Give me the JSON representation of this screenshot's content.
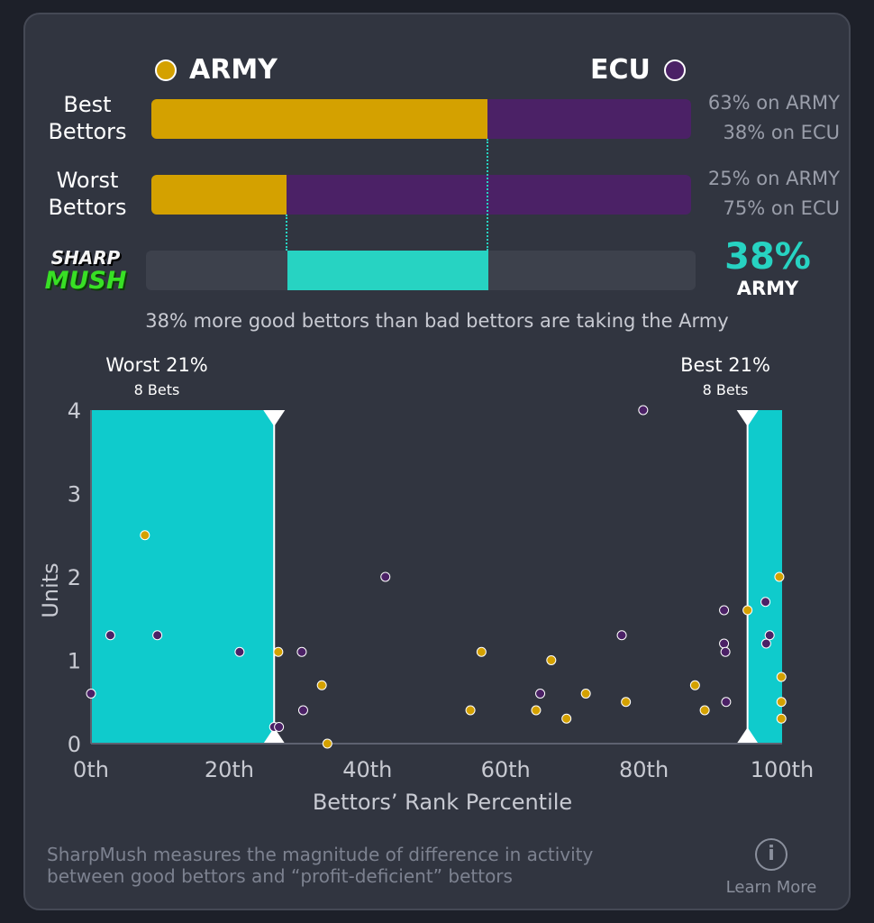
{
  "header": {
    "team_a": {
      "name": "ARMY",
      "color": "#d4a100"
    },
    "team_b": {
      "name": "ECU",
      "color": "#4b2166"
    }
  },
  "rows": [
    {
      "label_line1": "Best",
      "label_line2": "Bettors",
      "team_a_pct": 63,
      "team_b_pct": 38,
      "text_a": "63% on ARMY",
      "text_b": "38% on ECU"
    },
    {
      "label_line1": "Worst",
      "label_line2": "Bettors",
      "team_a_pct": 25,
      "team_b_pct": 75,
      "text_a": "25% on ARMY",
      "text_b": "75% on ECU"
    }
  ],
  "sharp": {
    "logo_line1": "SHARP",
    "logo_line2": "MUSH",
    "value": "38%",
    "team": "ARMY",
    "diff_fraction": 0.38,
    "color": "#27d3c2"
  },
  "summary": "38% more good bettors than bad bettors are taking the Army",
  "chart_data": {
    "type": "scatter",
    "xlabel": "Bettors’ Rank Percentile",
    "ylabel": "Units",
    "xlim": [
      0,
      100
    ],
    "ylim": [
      0,
      4
    ],
    "x_ticks": [
      "0th",
      "20th",
      "40th",
      "60th",
      "80th",
      "100th"
    ],
    "x_tick_values": [
      0,
      20,
      40,
      60,
      80,
      100
    ],
    "y_ticks": [
      "0",
      "1",
      "2",
      "3",
      "4"
    ],
    "y_tick_values": [
      0,
      1,
      2,
      3,
      4
    ],
    "regions": [
      {
        "name": "Worst 21%",
        "sub": "8 Bets",
        "x_start": 0,
        "x_end": 26.5
      },
      {
        "name": "Best 21%",
        "sub": "8 Bets",
        "x_start": 95,
        "x_end": 100
      }
    ],
    "series": [
      {
        "name": "ARMY",
        "color": "#d4a100",
        "points": [
          [
            7.8,
            2.5
          ],
          [
            27.1,
            1.1
          ],
          [
            33.4,
            0.7
          ],
          [
            34.2,
            0.0
          ],
          [
            54.9,
            0.4
          ],
          [
            56.5,
            1.1
          ],
          [
            64.4,
            0.4
          ],
          [
            66.6,
            1.0
          ],
          [
            68.8,
            0.3
          ],
          [
            71.6,
            0.6
          ],
          [
            77.4,
            0.5
          ],
          [
            87.4,
            0.7
          ],
          [
            88.8,
            0.4
          ],
          [
            95.0,
            1.6
          ],
          [
            99.6,
            2.0
          ],
          [
            99.9,
            0.8
          ],
          [
            99.9,
            0.5
          ],
          [
            99.9,
            0.3
          ]
        ]
      },
      {
        "name": "ECU",
        "color": "#4b2166",
        "points": [
          [
            0.0,
            0.6
          ],
          [
            2.8,
            1.3
          ],
          [
            9.6,
            1.3
          ],
          [
            21.5,
            1.1
          ],
          [
            26.5,
            0.2
          ],
          [
            27.2,
            0.2
          ],
          [
            30.5,
            1.1
          ],
          [
            30.7,
            0.4
          ],
          [
            42.6,
            2.0
          ],
          [
            65.0,
            0.6
          ],
          [
            76.8,
            1.3
          ],
          [
            79.9,
            4.0
          ],
          [
            91.6,
            1.6
          ],
          [
            91.6,
            1.2
          ],
          [
            91.8,
            1.1
          ],
          [
            91.9,
            0.5
          ],
          [
            97.6,
            1.7
          ],
          [
            97.7,
            1.2
          ],
          [
            98.2,
            1.3
          ]
        ]
      }
    ]
  },
  "footer": {
    "text_line1": "SharpMush measures the magnitude of difference in activity",
    "text_line2": "between good bettors and “profit-deficient” bettors",
    "info_icon_glyph": "i",
    "learn_more": "Learn More"
  }
}
